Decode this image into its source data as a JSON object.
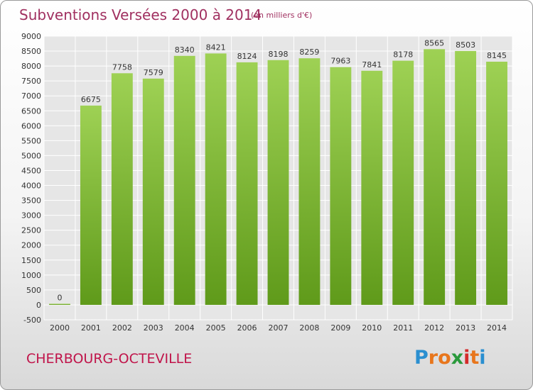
{
  "header": {
    "title": "Subventions Versées 2000 à 2014",
    "subtitle": "(en milliers d'€)"
  },
  "footer": {
    "place": "CHERBOURG-OCTEVILLE",
    "brand_letters": [
      "P",
      "r",
      "o",
      "x",
      "i",
      "t",
      "i"
    ],
    "brand_colors": [
      "#2a8fd0",
      "#e8761c",
      "#e8761c",
      "#2a9a3c",
      "#d42b2b",
      "#e8761c",
      "#2a8fd0"
    ]
  },
  "chart_data": {
    "type": "bar",
    "title": "Subventions Versées 2000 à 2014",
    "subtitle": "(en milliers d'€)",
    "xlabel": "",
    "ylabel": "",
    "categories": [
      "2000",
      "2001",
      "2002",
      "2003",
      "2004",
      "2005",
      "2006",
      "2007",
      "2008",
      "2009",
      "2010",
      "2011",
      "2012",
      "2013",
      "2014"
    ],
    "values": [
      0,
      6675,
      7758,
      7579,
      8340,
      8421,
      8124,
      8198,
      8259,
      7963,
      7841,
      8178,
      8565,
      8503,
      8145
    ],
    "ylim": [
      -500,
      9000
    ],
    "yticks": [
      -500,
      0,
      500,
      1000,
      1500,
      2000,
      2500,
      3000,
      3500,
      4000,
      4500,
      5000,
      5500,
      6000,
      6500,
      7000,
      7500,
      8000,
      8500,
      9000
    ],
    "grid": true,
    "bar_color_top": "#9ed154",
    "bar_color_bottom": "#5f9a1a"
  }
}
